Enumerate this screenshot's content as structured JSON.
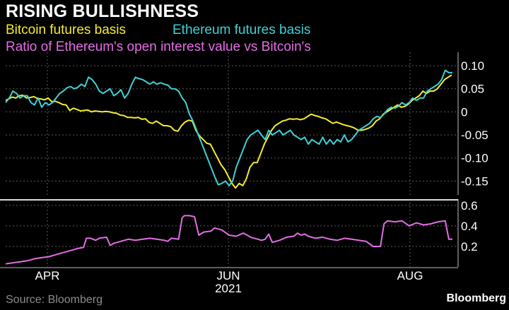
{
  "title": "RISING BULLISHNESS",
  "source": "Source: Bloomberg",
  "brand": "Bloomberg",
  "colors": {
    "btc": "#f4ec2e",
    "eth": "#3fd1d6",
    "ratio": "#e36de4",
    "grid": "#5a5a5a",
    "divider": "#d8d8d8"
  },
  "chart_data": [
    {
      "type": "line",
      "title": "",
      "ylim": [
        -0.18,
        0.12
      ],
      "yticks": [
        0.1,
        0.05,
        0,
        -0.05,
        -0.1,
        -0.15
      ],
      "ytick_labels": [
        "0.10",
        "0.05",
        "0",
        "-0.05",
        "-0.10",
        "-0.15"
      ],
      "grid": true,
      "series": [
        {
          "name": "Bitcoin futures basis",
          "x": [
            0,
            4,
            9,
            14,
            19,
            24,
            29,
            34,
            39,
            44,
            49,
            54,
            59,
            64,
            69,
            74,
            79,
            84,
            89,
            94,
            99,
            104,
            109,
            114,
            119,
            124,
            129,
            134,
            139,
            144,
            149,
            154,
            159,
            164,
            169,
            174,
            179,
            184,
            189,
            194,
            199,
            204,
            209,
            214,
            219,
            224,
            229,
            234,
            239,
            244,
            249,
            254,
            259,
            264,
            269,
            274,
            279,
            284,
            289,
            294,
            299,
            304,
            309,
            314,
            319,
            324,
            329,
            334,
            339,
            344,
            349,
            354,
            359,
            364,
            369,
            374,
            379,
            384,
            389,
            394,
            399,
            404,
            409,
            414,
            419,
            424,
            429,
            434,
            439,
            444,
            449,
            454,
            459,
            464,
            469,
            474,
            479,
            484,
            489,
            494,
            499,
            504,
            509,
            514,
            519,
            524,
            529,
            534,
            539,
            544,
            549,
            554,
            559,
            564,
            569,
            574,
            579,
            584,
            589,
            594,
            599,
            604,
            609,
            614,
            619
          ],
          "values": [
            0.025,
            0.028,
            0.032,
            0.03,
            0.035,
            0.036,
            0.03,
            0.031,
            0.033,
            0.029,
            0.028,
            0.026,
            0.03,
            0.022,
            0.023,
            0.02,
            0.016,
            0.015,
            0.003,
            0.008,
            0.005,
            0.002,
            0.003,
            0.004,
            0.0,
            0.002,
            0.001,
            0.0,
            0.001,
            0.0,
            -0.002,
            -0.003,
            -0.007,
            -0.008,
            -0.012,
            -0.012,
            -0.013,
            -0.012,
            -0.016,
            -0.015,
            -0.023,
            -0.025,
            -0.02,
            -0.025,
            -0.03,
            -0.03,
            -0.032,
            -0.04,
            -0.042,
            -0.03,
            -0.022,
            -0.018,
            -0.02,
            -0.04,
            -0.052,
            -0.06,
            -0.068,
            -0.07,
            -0.085,
            -0.1,
            -0.115,
            -0.125,
            -0.14,
            -0.155,
            -0.165,
            -0.155,
            -0.16,
            -0.145,
            -0.12,
            -0.11,
            -0.11,
            -0.09,
            -0.07,
            -0.055,
            -0.04,
            -0.03,
            -0.025,
            -0.02,
            -0.018,
            -0.015,
            -0.016,
            -0.015,
            -0.017,
            -0.015,
            -0.01,
            -0.005,
            -0.008,
            -0.01,
            -0.013,
            -0.015,
            -0.02,
            -0.025,
            -0.022,
            -0.025,
            -0.028,
            -0.03,
            -0.032,
            -0.035,
            -0.04,
            -0.04,
            -0.038,
            -0.035,
            -0.03,
            -0.02,
            -0.015,
            -0.005,
            0.0,
            0.005,
            0.01,
            0.015,
            0.01,
            0.012,
            0.017,
            0.025,
            0.03,
            0.035,
            0.045,
            0.04,
            0.045,
            0.045,
            0.05,
            0.06,
            0.07,
            0.075,
            0.08
          ]
        },
        {
          "name": "Ethereum futures basis",
          "x": [
            0,
            5,
            10,
            15,
            20,
            25,
            30,
            35,
            40,
            45,
            50,
            55,
            60,
            65,
            70,
            75,
            80,
            85,
            90,
            95,
            100,
            105,
            110,
            115,
            120,
            125,
            130,
            135,
            140,
            145,
            150,
            155,
            160,
            165,
            170,
            175,
            180,
            185,
            190,
            195,
            200,
            205,
            210,
            215,
            220,
            225,
            230,
            235,
            240,
            245,
            250,
            255,
            260,
            265,
            270,
            275,
            280,
            285,
            290,
            295,
            300,
            305,
            310,
            315,
            320,
            325,
            330,
            335,
            340,
            345,
            350,
            355,
            360,
            365,
            370,
            375,
            380,
            385,
            390,
            395,
            400,
            405,
            410,
            415,
            420,
            425,
            430,
            435,
            440,
            445,
            450,
            455,
            460,
            465,
            470,
            475,
            480,
            485,
            490,
            495,
            500,
            505,
            510,
            515,
            520,
            525,
            530,
            535,
            540,
            545,
            550,
            555,
            560,
            565,
            570,
            575,
            580,
            585,
            590,
            595,
            600,
            605,
            610,
            615,
            620
          ],
          "values": [
            0.02,
            0.03,
            0.045,
            0.04,
            0.03,
            0.035,
            0.035,
            0.02,
            0.015,
            0.03,
            0.01,
            0.02,
            0.015,
            0.02,
            0.03,
            0.04,
            0.045,
            0.052,
            0.055,
            0.05,
            0.053,
            0.06,
            0.055,
            0.075,
            0.07,
            0.06,
            0.045,
            0.04,
            0.045,
            0.05,
            0.035,
            0.04,
            0.048,
            0.03,
            0.04,
            0.06,
            0.075,
            0.072,
            0.07,
            0.065,
            0.06,
            0.065,
            0.06,
            0.063,
            0.06,
            0.058,
            0.05,
            0.05,
            0.045,
            0.03,
            0.02,
            -0.005,
            -0.02,
            -0.04,
            -0.06,
            -0.08,
            -0.1,
            -0.12,
            -0.14,
            -0.158,
            -0.155,
            -0.15,
            -0.16,
            -0.15,
            -0.12,
            -0.1,
            -0.08,
            -0.06,
            -0.05,
            -0.045,
            -0.04,
            -0.05,
            -0.06,
            -0.04,
            -0.05,
            -0.045,
            -0.04,
            -0.05,
            -0.045,
            -0.04,
            -0.05,
            -0.055,
            -0.06,
            -0.055,
            -0.07,
            -0.06,
            -0.065,
            -0.07,
            -0.055,
            -0.07,
            -0.06,
            -0.07,
            -0.06,
            -0.065,
            -0.05,
            -0.065,
            -0.06,
            -0.05,
            -0.04,
            -0.035,
            -0.03,
            -0.025,
            -0.015,
            -0.01,
            -0.012,
            -0.005,
            0.005,
            0.01,
            0.008,
            0.012,
            0.02,
            0.015,
            0.02,
            0.03,
            0.025,
            0.03,
            0.03,
            0.045,
            0.05,
            0.055,
            0.06,
            0.07,
            0.09,
            0.085,
            0.085
          ]
        }
      ]
    },
    {
      "type": "line",
      "title": "",
      "ylim": [
        0,
        0.62
      ],
      "yticks": [
        0.6,
        0.4,
        0.2
      ],
      "ytick_labels": [
        "0.6",
        "0.4",
        "0.2"
      ],
      "grid": true,
      "series": [
        {
          "name": "Ratio of Ethereum's open interest value vs Bitcoin's",
          "x": [
            0,
            20,
            30,
            40,
            50,
            60,
            70,
            80,
            90,
            100,
            108,
            112,
            118,
            125,
            130,
            140,
            145,
            150,
            160,
            170,
            180,
            190,
            200,
            210,
            220,
            225,
            230,
            240,
            245,
            248,
            250,
            255,
            262,
            268,
            275,
            285,
            290,
            300,
            310,
            320,
            330,
            340,
            350,
            355,
            360,
            365,
            370,
            380,
            390,
            400,
            405,
            410,
            415,
            420,
            430,
            440,
            450,
            460,
            470,
            480,
            490,
            500,
            510,
            515,
            520,
            525,
            530,
            540,
            550,
            560,
            570,
            580,
            590,
            600,
            610,
            615,
            620
          ],
          "values": [
            0.03,
            0.05,
            0.06,
            0.08,
            0.09,
            0.1,
            0.12,
            0.14,
            0.16,
            0.18,
            0.19,
            0.28,
            0.28,
            0.26,
            0.28,
            0.29,
            0.21,
            0.23,
            0.25,
            0.27,
            0.26,
            0.27,
            0.28,
            0.27,
            0.26,
            0.25,
            0.28,
            0.27,
            0.48,
            0.5,
            0.5,
            0.5,
            0.49,
            0.31,
            0.34,
            0.35,
            0.38,
            0.36,
            0.31,
            0.3,
            0.33,
            0.29,
            0.27,
            0.26,
            0.27,
            0.32,
            0.24,
            0.26,
            0.29,
            0.3,
            0.33,
            0.31,
            0.32,
            0.3,
            0.28,
            0.29,
            0.27,
            0.26,
            0.28,
            0.27,
            0.26,
            0.25,
            0.2,
            0.2,
            0.2,
            0.42,
            0.45,
            0.44,
            0.45,
            0.4,
            0.43,
            0.41,
            0.42,
            0.44,
            0.45,
            0.27,
            0.27
          ]
        }
      ]
    }
  ],
  "xaxis": {
    "ticks": [
      {
        "x": 67,
        "label": "APR"
      },
      {
        "x": 323,
        "label": "JUN"
      },
      {
        "x": 580,
        "label": "AUG"
      }
    ],
    "year_label": "2021",
    "year_x": 323
  }
}
